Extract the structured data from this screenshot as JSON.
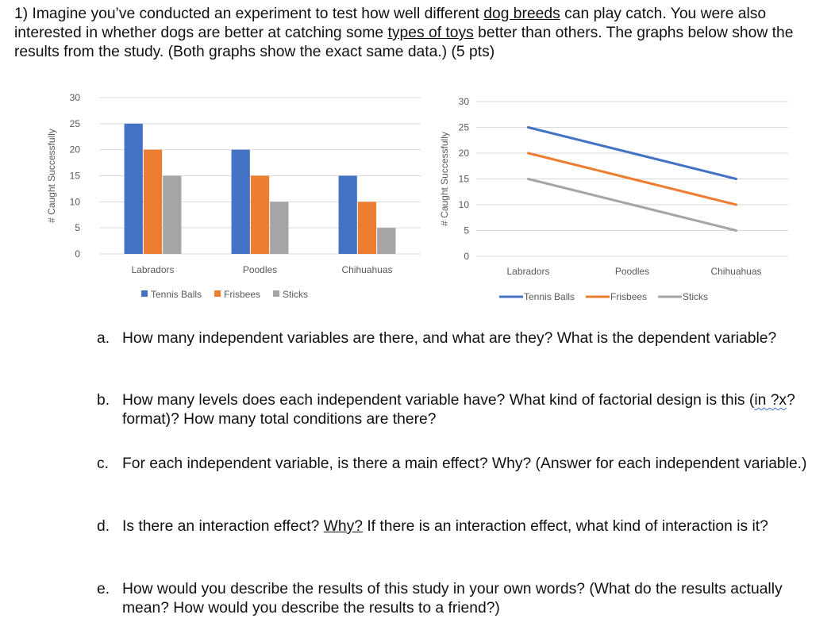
{
  "intro": {
    "p1": "1) Imagine you’ve conducted an experiment to test how well different ",
    "u1": "dog breeds",
    "p2": " can play catch. You were also interested in whether dogs are better at catching some ",
    "u2": "types of toys",
    "p3": " better than others. The graphs below show the results from the study. (Both graphs show the exact same data.) (5 pts)"
  },
  "chart_data": [
    {
      "type": "bar",
      "categories": [
        "Labradors",
        "Poodles",
        "Chihuahuas"
      ],
      "series": [
        {
          "name": "Tennis Balls",
          "values": [
            25,
            20,
            15
          ],
          "color": "#4472c4"
        },
        {
          "name": "Frisbees",
          "values": [
            20,
            15,
            10
          ],
          "color": "#ed7d31"
        },
        {
          "name": "Sticks",
          "values": [
            15,
            10,
            5
          ],
          "color": "#a5a5a5"
        }
      ],
      "yticks": [
        "0",
        "5",
        "10",
        "15",
        "20",
        "25",
        "30"
      ],
      "ylim": [
        0,
        30
      ],
      "ylabel": "# Caught Successfully",
      "xlabel": "",
      "grid": true,
      "legend": "bottom"
    },
    {
      "type": "line",
      "categories": [
        "Labradors",
        "Poodles",
        "Chihuahuas"
      ],
      "series": [
        {
          "name": "Tennis Balls",
          "values": [
            25,
            20,
            15
          ],
          "color": "#4472c4"
        },
        {
          "name": "Frisbees",
          "values": [
            20,
            15,
            10
          ],
          "color": "#ed7d31"
        },
        {
          "name": "Sticks",
          "values": [
            15,
            10,
            5
          ],
          "color": "#a5a5a5"
        }
      ],
      "yticks": [
        "0",
        "5",
        "10",
        "15",
        "20",
        "25",
        "30"
      ],
      "ylim": [
        0,
        30
      ],
      "ylabel": "# Caught Successfully",
      "xlabel": "",
      "grid": true,
      "legend": "bottom"
    }
  ],
  "questions": {
    "a": {
      "label": "a.",
      "text": "How many independent variables are there, and what are they? What is the dependent variable?"
    },
    "b": {
      "label": "b.",
      "t1": "How many levels does each independent variable have? What kind of factorial design is this (",
      "squig": "in ?x",
      "t2": "? format)? How many total conditions are there?"
    },
    "c": {
      "label": "c.",
      "text": "For each independent variable, is there a main effect? Why? (Answer for each independent variable.)"
    },
    "d": {
      "label": "d.",
      "t1": "Is there an interaction effect? ",
      "u": "Why?",
      "t2": " If there is an interaction effect, what kind of interaction is it?"
    },
    "e": {
      "label": "e.",
      "text": "How would you describe the results of this study in your own words? (What do the results actually mean? How would you describe the results to a friend?)"
    }
  }
}
